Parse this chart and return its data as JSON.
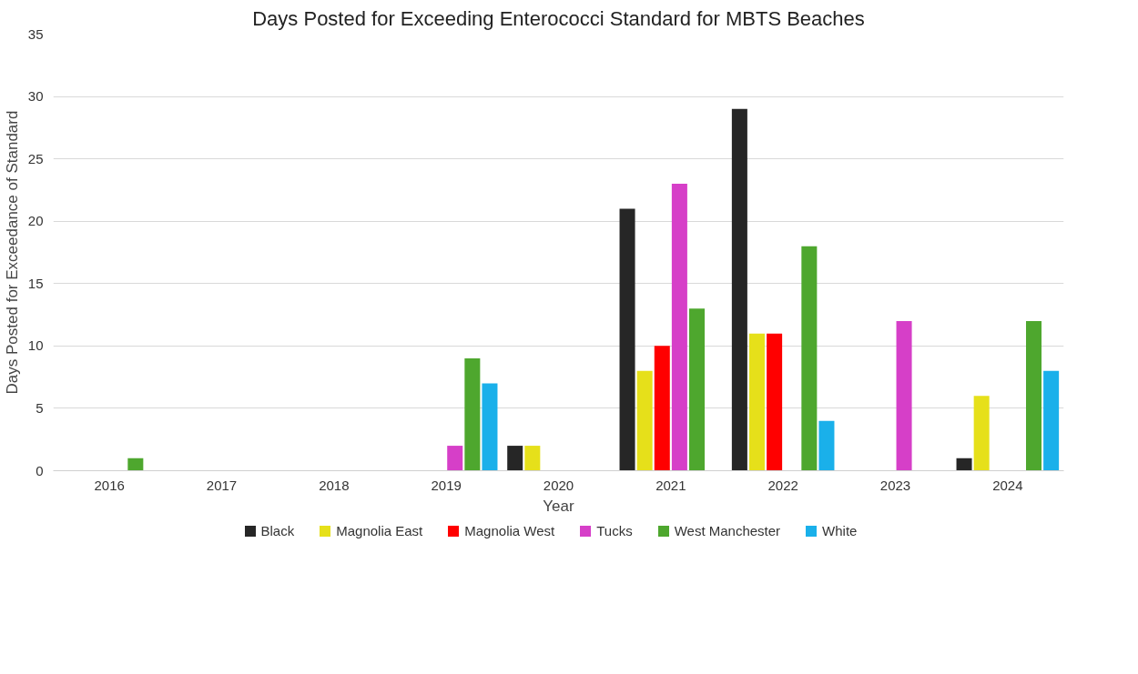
{
  "chart_data": {
    "type": "bar",
    "title": "Days Posted for Exceeding Enterococci Standard for MBTS Beaches",
    "xlabel": "Year",
    "ylabel": "Days Posted for Exceedance of Standard",
    "categories": [
      "2016",
      "2017",
      "2018",
      "2019",
      "2020",
      "2021",
      "2022",
      "2023",
      "2024"
    ],
    "series": [
      {
        "name": "Black",
        "color": "#262626",
        "values": [
          0,
          0,
          0,
          0,
          2,
          21,
          29,
          0,
          1
        ]
      },
      {
        "name": "Magnolia East",
        "color": "#e6e01a",
        "values": [
          0,
          0,
          0,
          0,
          2,
          8,
          11,
          0,
          6
        ]
      },
      {
        "name": "Magnolia West",
        "color": "#ff0000",
        "values": [
          0,
          0,
          0,
          0,
          0,
          10,
          11,
          0,
          0
        ]
      },
      {
        "name": "Tucks",
        "color": "#d63fc8",
        "values": [
          0,
          0,
          0,
          2,
          0,
          23,
          0,
          12,
          0
        ]
      },
      {
        "name": "West Manchester",
        "color": "#4ea72e",
        "values": [
          1,
          0,
          0,
          9,
          0,
          13,
          18,
          0,
          12
        ]
      },
      {
        "name": "White",
        "color": "#1ab0ea",
        "values": [
          0,
          0,
          0,
          7,
          0,
          0,
          4,
          0,
          8
        ]
      }
    ],
    "ylim": [
      0,
      35
    ],
    "yticks": [
      0,
      5,
      10,
      15,
      20,
      25,
      30,
      35
    ],
    "grid": "y",
    "legend": "bottom"
  }
}
